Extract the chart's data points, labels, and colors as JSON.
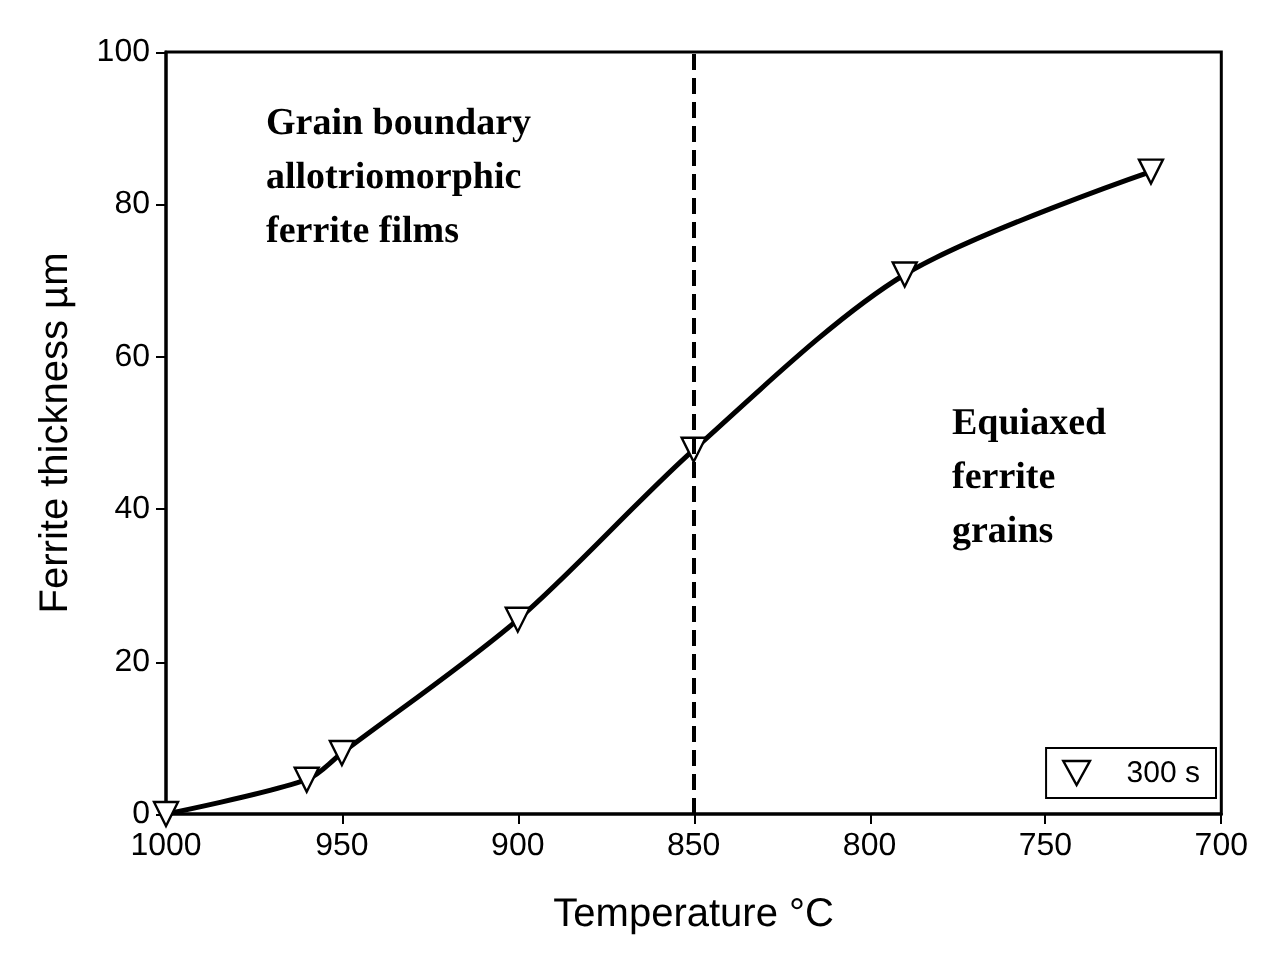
{
  "chart_data": {
    "type": "line",
    "xlabel": "Temperature °C",
    "ylabel": "Ferrite thickness µm",
    "x": [
      1000,
      960,
      950,
      900,
      850,
      790,
      720
    ],
    "series": [
      {
        "name": "300 s",
        "color": "#000000",
        "values": [
          0,
          4.5,
          8,
          25.5,
          47.8,
          70.8,
          84.3
        ]
      }
    ],
    "xlim": [
      1000,
      700
    ],
    "xticks": [
      1000,
      950,
      900,
      850,
      800,
      750,
      700
    ],
    "ylim": [
      0,
      100
    ],
    "yticks": [
      0,
      20,
      40,
      60,
      80,
      100
    ],
    "ref_lines": [
      {
        "axis": "x",
        "value": 850,
        "color": "#000000",
        "line_style": "dashed"
      }
    ],
    "annotations": [
      "Grain boundary\nallotriomorphic\nferrite films",
      "Equiaxed\nferrite\ngrains"
    ],
    "marker": "triangle",
    "line_style": "solid",
    "legend": "bottom right",
    "grid": false
  }
}
